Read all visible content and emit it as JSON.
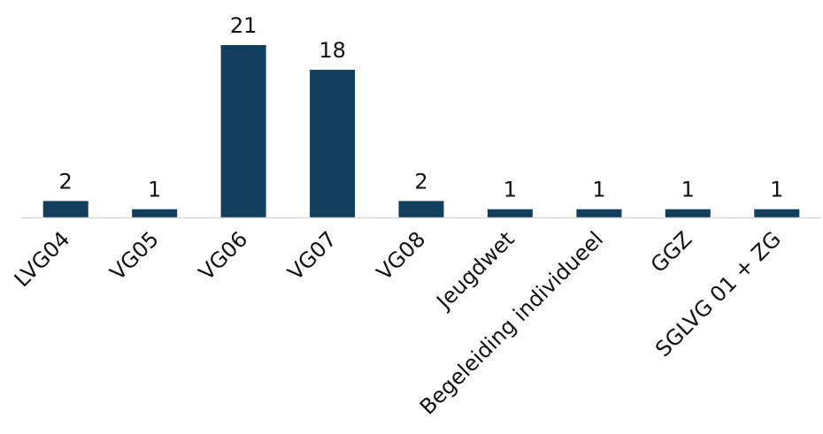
{
  "chart_data": {
    "type": "bar",
    "title": "",
    "xlabel": "",
    "ylabel": "",
    "categories": [
      "LVG04",
      "VG05",
      "VG06",
      "VG07",
      "VG08",
      "Jeugdwet",
      "Begeleiding individueel",
      "GGZ",
      "SGLVG 01 + ZG"
    ],
    "values": [
      2,
      1,
      21,
      18,
      2,
      1,
      1,
      1,
      1
    ],
    "ylim": [
      0,
      21
    ],
    "grid": false,
    "legend": "none",
    "bar_color": "#123f5e",
    "axis_color": "#d9d9d9"
  }
}
